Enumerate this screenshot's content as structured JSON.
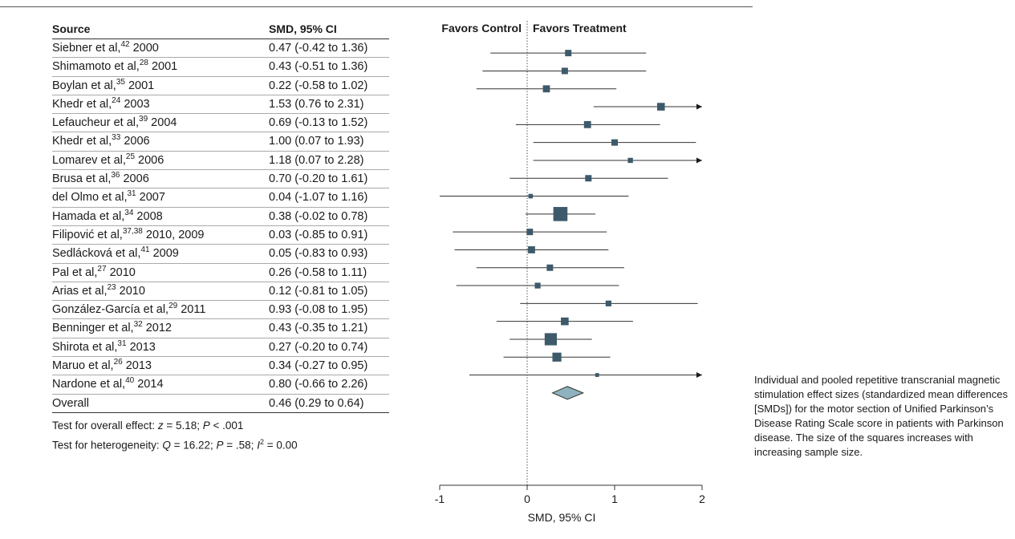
{
  "table": {
    "col_source": "Source",
    "col_smd": "SMD, 95% CI",
    "rows": [
      {
        "name": "Siebner et al,",
        "ref": "42",
        "year": " 2000",
        "ci_text": "0.47 (-0.42 to 1.36)"
      },
      {
        "name": "Shimamoto et al,",
        "ref": "28",
        "year": " 2001",
        "ci_text": "0.43 (-0.51 to 1.36)"
      },
      {
        "name": "Boylan et al,",
        "ref": "35",
        "year": " 2001",
        "ci_text": "0.22 (-0.58 to 1.02)"
      },
      {
        "name": "Khedr et al,",
        "ref": "24",
        "year": " 2003",
        "ci_text": "1.53 (0.76 to 2.31)"
      },
      {
        "name": "Lefaucheur et al,",
        "ref": "39",
        "year": " 2004",
        "ci_text": "0.69 (-0.13 to 1.52)"
      },
      {
        "name": "Khedr et al,",
        "ref": "33",
        "year": " 2006",
        "ci_text": "1.00 (0.07 to 1.93)"
      },
      {
        "name": "Lomarev et al,",
        "ref": "25",
        "year": " 2006",
        "ci_text": "1.18 (0.07 to 2.28)"
      },
      {
        "name": "Brusa et al,",
        "ref": "36",
        "year": " 2006",
        "ci_text": "0.70 (-0.20 to 1.61)"
      },
      {
        "name": "del Olmo et al,",
        "ref": "31",
        "year": " 2007",
        "ci_text": "0.04 (-1.07 to 1.16)"
      },
      {
        "name": "Hamada et al,",
        "ref": "34",
        "year": " 2008",
        "ci_text": "0.38 (-0.02 to 0.78)"
      },
      {
        "name": "Filipović et al,",
        "ref": "37,38",
        "year": " 2010, 2009",
        "ci_text": "0.03 (-0.85 to 0.91)"
      },
      {
        "name": "Sedlácková et al,",
        "ref": "41",
        "year": " 2009",
        "ci_text": "0.05 (-0.83 to 0.93)"
      },
      {
        "name": "Pal et al,",
        "ref": "27",
        "year": " 2010",
        "ci_text": "0.26 (-0.58 to 1.11)"
      },
      {
        "name": "Arias et al,",
        "ref": "23",
        "year": " 2010",
        "ci_text": "0.12 (-0.81 to 1.05)"
      },
      {
        "name": "González-García et al,",
        "ref": "29",
        "year": " 2011",
        "ci_text": "0.93 (-0.08 to 1.95)"
      },
      {
        "name": "Benninger et al,",
        "ref": "32",
        "year": " 2012",
        "ci_text": "0.43 (-0.35 to 1.21)"
      },
      {
        "name": "Shirota et al,",
        "ref": "31",
        "year": " 2013",
        "ci_text": "0.27 (-0.20 to 0.74)"
      },
      {
        "name": "Maruo et al,",
        "ref": "26",
        "year": " 2013",
        "ci_text": "0.34 (-0.27 to 0.95)"
      },
      {
        "name": "Nardone et al,",
        "ref": "40",
        "year": " 2014",
        "ci_text": "0.80 (-0.66 to 2.26)"
      }
    ],
    "overall_label": "Overall",
    "overall_ci_text": "0.46 (0.29 to 0.64)",
    "test_overall": {
      "prefix": "Test for overall effect: ",
      "z": "z",
      "z_rest": " = 5.18; ",
      "p": "P",
      "p_rest": " < .001"
    },
    "test_heterogeneity": {
      "prefix": "Test for heterogeneity: ",
      "q": "Q",
      "q_rest": " = 16.22; ",
      "p": "P",
      "p_rest": " = .58; ",
      "i": "I",
      "i_sup": "2",
      "i_rest": " = 0.00"
    }
  },
  "caption": "Individual and pooled repetitive transcranial magnetic stimulation effect sizes (standardized mean differences [SMDs]) for the motor section of Unified Parkinson’s Disease Rating Scale score in patients with Parkinson disease. The size of the squares increases with increasing sample size.",
  "colors": {
    "marker": "#3d5a6b",
    "diamond": "#8fb3be",
    "axis": "#333333"
  },
  "chart_data": {
    "type": "forest",
    "title": "",
    "xlabel": "SMD, 95% CI",
    "favors_left": "Favors Control",
    "favors_right": "Favors Treatment",
    "xlim": [
      -1,
      2
    ],
    "xticks": [
      -1,
      0,
      1,
      2
    ],
    "reference_line": 0,
    "studies": [
      {
        "smd": 0.47,
        "low": -0.42,
        "high": 1.36,
        "weight": 1.0
      },
      {
        "smd": 0.43,
        "low": -0.51,
        "high": 1.36,
        "weight": 1.0
      },
      {
        "smd": 0.22,
        "low": -0.58,
        "high": 1.02,
        "weight": 1.1
      },
      {
        "smd": 1.53,
        "low": 0.76,
        "high": 2.31,
        "weight": 1.2
      },
      {
        "smd": 0.69,
        "low": -0.13,
        "high": 1.52,
        "weight": 1.1
      },
      {
        "smd": 1.0,
        "low": 0.07,
        "high": 1.93,
        "weight": 1.0
      },
      {
        "smd": 1.18,
        "low": 0.07,
        "high": 2.28,
        "weight": 0.8
      },
      {
        "smd": 0.7,
        "low": -0.2,
        "high": 1.61,
        "weight": 1.0
      },
      {
        "smd": 0.04,
        "low": -1.07,
        "high": 1.16,
        "weight": 0.7
      },
      {
        "smd": 0.38,
        "low": -0.02,
        "high": 0.78,
        "weight": 2.2
      },
      {
        "smd": 0.03,
        "low": -0.85,
        "high": 0.91,
        "weight": 1.0
      },
      {
        "smd": 0.05,
        "low": -0.83,
        "high": 0.93,
        "weight": 1.1
      },
      {
        "smd": 0.26,
        "low": -0.58,
        "high": 1.11,
        "weight": 1.0
      },
      {
        "smd": 0.12,
        "low": -0.81,
        "high": 1.05,
        "weight": 0.9
      },
      {
        "smd": 0.93,
        "low": -0.08,
        "high": 1.95,
        "weight": 0.9
      },
      {
        "smd": 0.43,
        "low": -0.35,
        "high": 1.21,
        "weight": 1.2
      },
      {
        "smd": 0.27,
        "low": -0.2,
        "high": 0.74,
        "weight": 1.9
      },
      {
        "smd": 0.34,
        "low": -0.27,
        "high": 0.95,
        "weight": 1.4
      },
      {
        "smd": 0.8,
        "low": -0.66,
        "high": 2.26,
        "weight": 0.6
      }
    ],
    "overall": {
      "smd": 0.46,
      "low": 0.29,
      "high": 0.64
    }
  }
}
